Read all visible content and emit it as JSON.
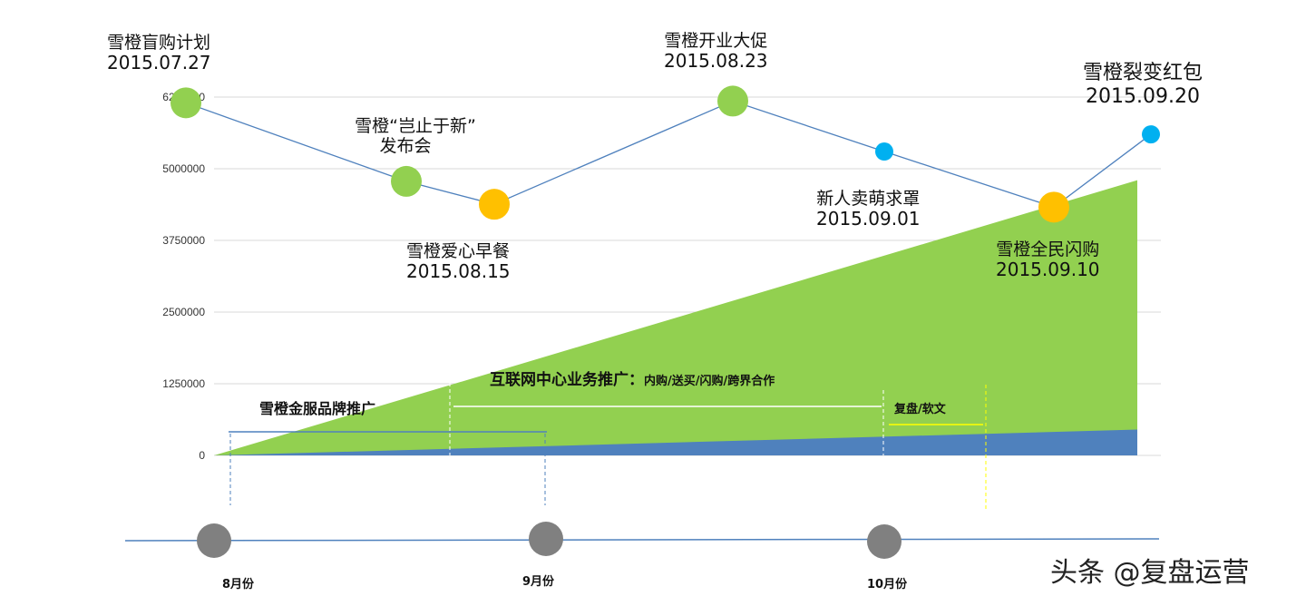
{
  "chart_data": {
    "type": "area",
    "y_axis": {
      "ticks": [
        "0",
        "1250000",
        "2500000",
        "3750000",
        "5000000",
        "6250000"
      ],
      "ylim": [
        0,
        6250000
      ],
      "grid": true
    },
    "areas": [
      {
        "color": "#92D050",
        "start": 0,
        "end": 4800000
      },
      {
        "color": "#4F81BD",
        "start": 0,
        "end": 450000
      }
    ],
    "milestones": [
      {
        "title": "雪橙盲购计划",
        "date": "2015.07.27",
        "value": 6150000,
        "color": "#92D050",
        "size": "large"
      },
      {
        "title": "雪橙“岂止于新”发布会",
        "title_line1": "雪橙“岂止于新”",
        "title_line2": "发布会",
        "date": "",
        "value": 4780000,
        "color": "#92D050",
        "size": "large"
      },
      {
        "title": "雪橙爱心早餐",
        "date": "2015.08.15",
        "value": 4380000,
        "color": "#FFC000",
        "size": "large"
      },
      {
        "title": "雪橙开业大促",
        "date": "2015.08.23",
        "value": 6180000,
        "color": "#92D050",
        "size": "large"
      },
      {
        "title": "新人卖萌求罩",
        "date": "2015.09.01",
        "value": 5300000,
        "color": "#00B0F0",
        "size": "small"
      },
      {
        "title": "雪橙全民闪购",
        "date": "2015.09.10",
        "value": 4330000,
        "color": "#FFC000",
        "size": "large"
      },
      {
        "title": "雪橙裂变红包",
        "date": "2015.09.20",
        "value": 5600000,
        "color": "#00B0F0",
        "size": "small"
      }
    ],
    "phases": [
      {
        "label": "雪橙金服品牌推广",
        "detail": "",
        "line_color": "#4F81BD"
      },
      {
        "label": "互联网中心业务推广：",
        "detail": "内购/送买/闪购/跨界合作",
        "line_color": "#ffffff"
      },
      {
        "label": "复盘/软文",
        "detail": "",
        "line_color": "#FFFF00"
      }
    ],
    "timeline": {
      "months": [
        "8月份",
        "9月份",
        "10月份"
      ],
      "dot_color": "#808080",
      "line_color": "#4F81BD"
    },
    "line_color": "#4F81BD"
  },
  "watermark": "头条 @复盘运营"
}
